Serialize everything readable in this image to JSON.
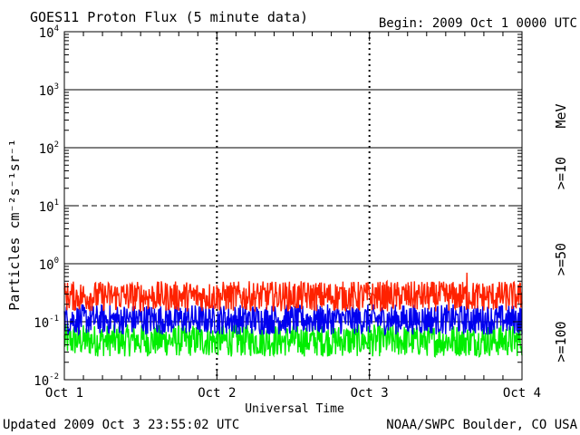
{
  "chart_data": {
    "type": "line",
    "title": "GOES11 Proton Flux (5 minute data)",
    "begin": "Begin: 2009 Oct 1 0000 UTC",
    "xlabel": "Universal Time",
    "ylabel": "Particles cm⁻²s⁻¹sr⁻¹",
    "x_tick_labels": [
      "Oct 1",
      "Oct 2",
      "Oct 3",
      "Oct 4"
    ],
    "x_range_days": [
      0,
      3
    ],
    "y_scale": "log",
    "y_range": [
      0.01,
      10000
    ],
    "y_tick_labels": [
      {
        "base": "10",
        "exp": "-2"
      },
      {
        "base": "10",
        "exp": "-1"
      },
      {
        "base": "10",
        "exp": "0"
      },
      {
        "base": "10",
        "exp": "1"
      },
      {
        "base": "10",
        "exp": "2"
      },
      {
        "base": "10",
        "exp": "3"
      },
      {
        "base": "10",
        "exp": "4"
      }
    ],
    "threshold_lines": [
      {
        "value": 10,
        "style": "dashed"
      },
      {
        "value": 100,
        "style": "solid"
      },
      {
        "value": 1000,
        "style": "solid"
      },
      {
        "value": 1,
        "style": "solid"
      },
      {
        "value": 0.1,
        "style": "solid"
      }
    ],
    "legend": {
      "unit": "MeV",
      "placement": "right"
    },
    "series": [
      {
        "name": ">=10",
        "color": "#ff2200",
        "low": 0.15,
        "high": 0.5,
        "note_peak": 0.7
      },
      {
        "name": ">=50",
        "color": "#0000ee",
        "low": 0.06,
        "high": 0.2
      },
      {
        "name": ">=100",
        "color": "#00ee00",
        "low": 0.025,
        "high": 0.09
      }
    ]
  },
  "footer": {
    "updated": "Updated 2009 Oct  3 23:55:02 UTC",
    "source": "NOAA/SWPC Boulder, CO USA"
  }
}
